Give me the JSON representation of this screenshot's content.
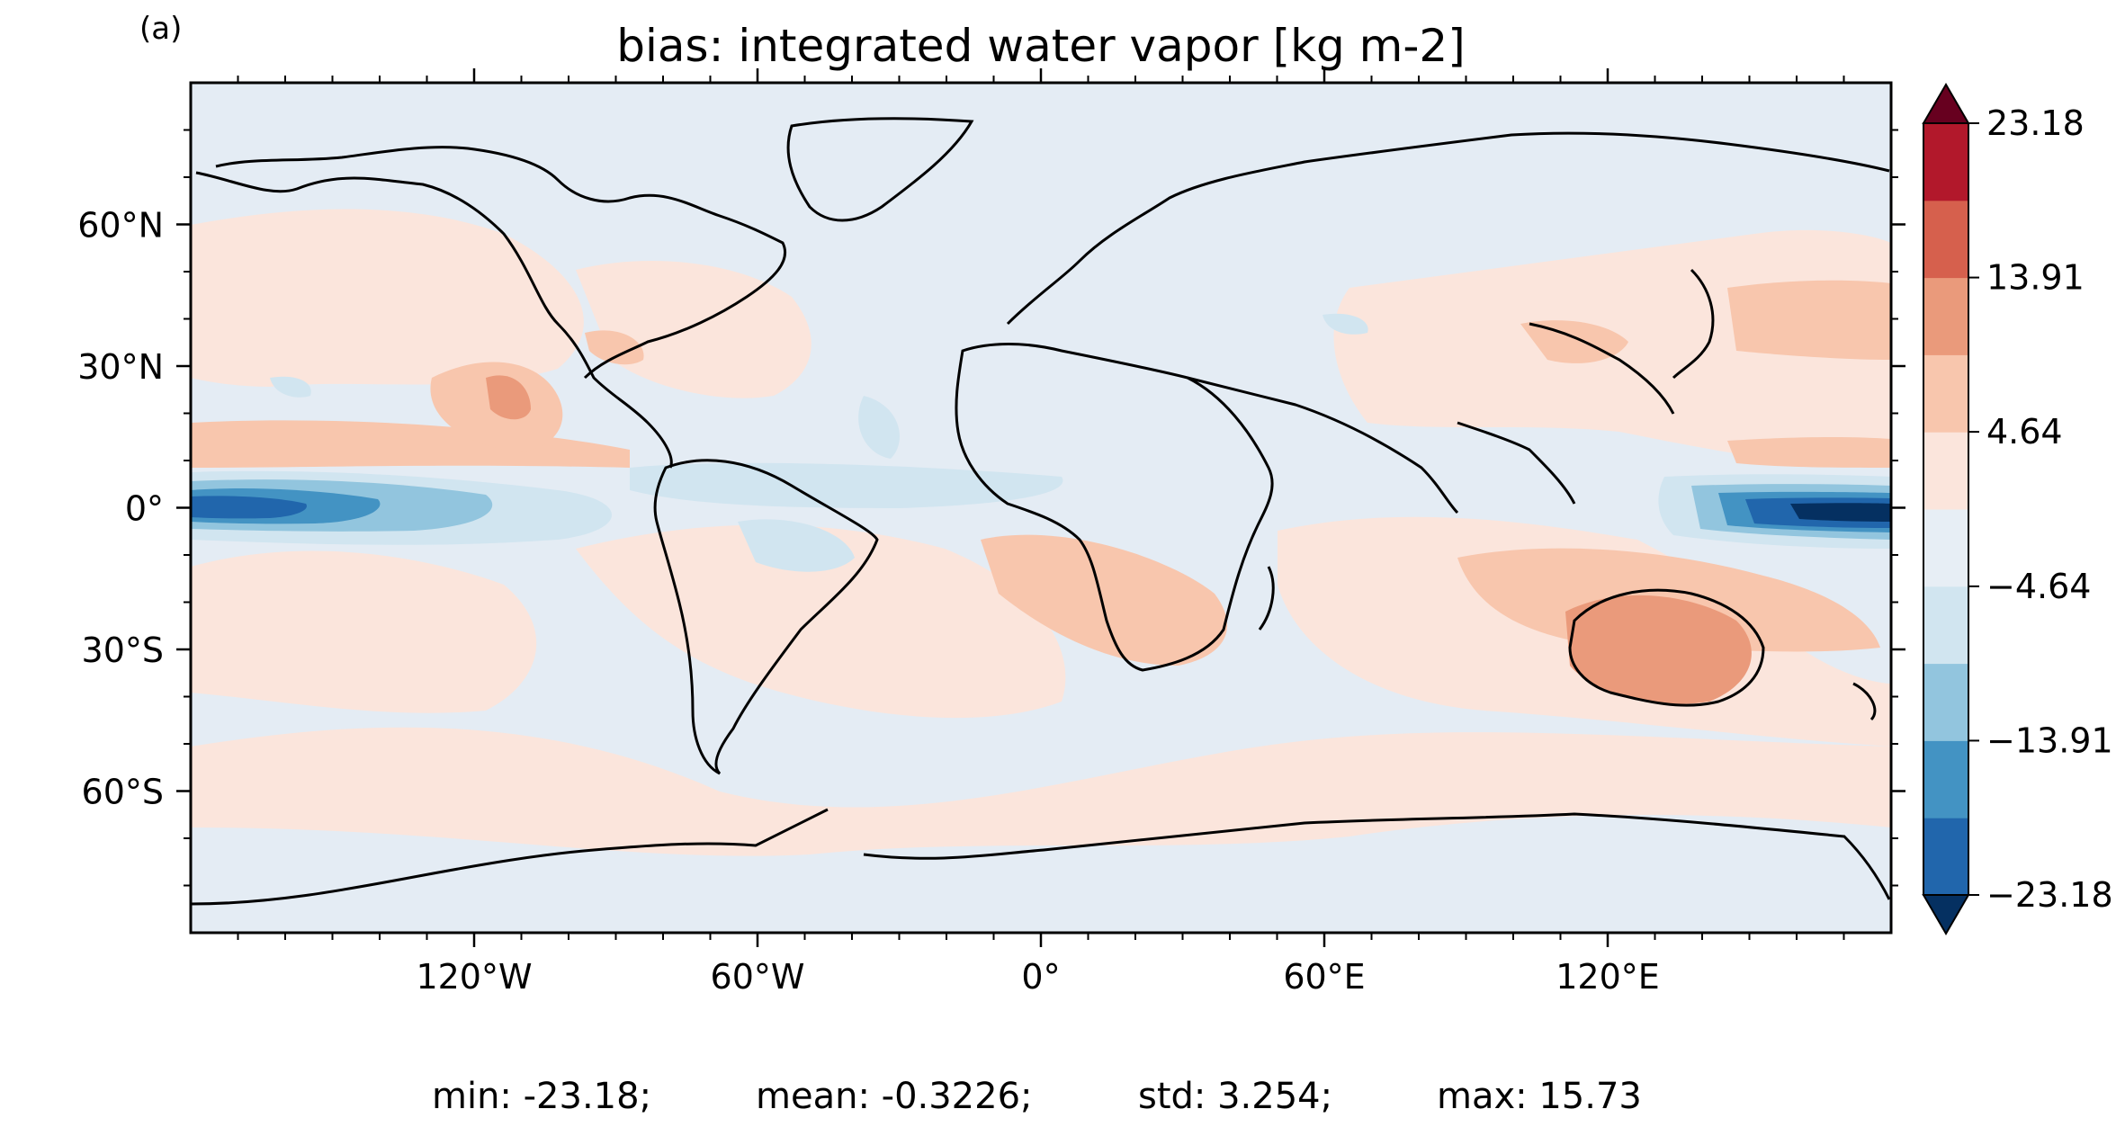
{
  "panel_label": "(a)",
  "title": "bias: integrated water vapor [kg m-2]",
  "longitude_ticks": [
    {
      "value": -120,
      "label": "120°W"
    },
    {
      "value": -60,
      "label": "60°W"
    },
    {
      "value": 0,
      "label": "0°"
    },
    {
      "value": 60,
      "label": "60°E"
    },
    {
      "value": 120,
      "label": "120°E"
    }
  ],
  "latitude_ticks": [
    {
      "value": 60,
      "label": "60°N"
    },
    {
      "value": 30,
      "label": "30°N"
    },
    {
      "value": 0,
      "label": "0°"
    },
    {
      "value": -30,
      "label": "30°S"
    },
    {
      "value": -60,
      "label": "60°S"
    }
  ],
  "map_extent": {
    "lon": [
      -180,
      180
    ],
    "lat": [
      -90,
      90
    ]
  },
  "colorbar": {
    "min": -23.18,
    "max": 23.18,
    "extend": "both",
    "tick_labels": [
      "23.18",
      "13.91",
      "4.64",
      "−4.64",
      "−13.91",
      "−23.18"
    ],
    "colors": [
      "#053061",
      "#2166ac",
      "#4393c3",
      "#92c5de",
      "#d1e5f0",
      "#e7eef5",
      "#fbe5dc",
      "#f8c6ad",
      "#ea9a7b",
      "#d6604d",
      "#b2182b",
      "#67001f"
    ]
  },
  "stats": {
    "min": "min: -23.18;",
    "mean": "mean: -0.3226;",
    "std": "std: 3.254;",
    "max": "max: 15.73"
  }
}
